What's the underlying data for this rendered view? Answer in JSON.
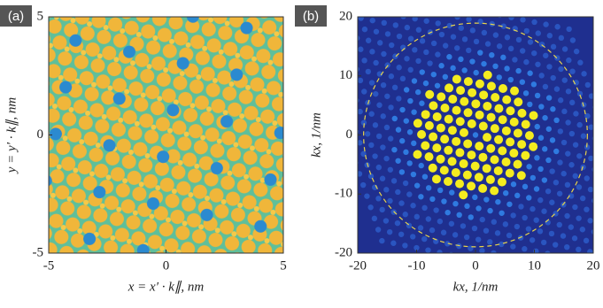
{
  "chart_data": [
    {
      "type": "heatmap",
      "panel_label": "(a)",
      "xlabel": "x = x′ · k∥, nm",
      "ylabel": "y = y′ · k∥, nm",
      "xlim": [
        -5,
        5
      ],
      "ylim": [
        -5,
        5
      ],
      "xticks": [
        -5,
        0,
        5
      ],
      "yticks": [
        -5,
        0,
        5
      ]
    },
    {
      "type": "heatmap",
      "panel_label": "(b)",
      "xlabel": "kx, 1/nm",
      "ylabel": "kx, 1/nm",
      "xlim": [
        -20,
        20
      ],
      "ylim": [
        -20,
        20
      ],
      "xticks": [
        -20,
        -10,
        0,
        10,
        20
      ],
      "yticks": [
        -20,
        -10,
        0,
        10,
        20
      ]
    }
  ]
}
